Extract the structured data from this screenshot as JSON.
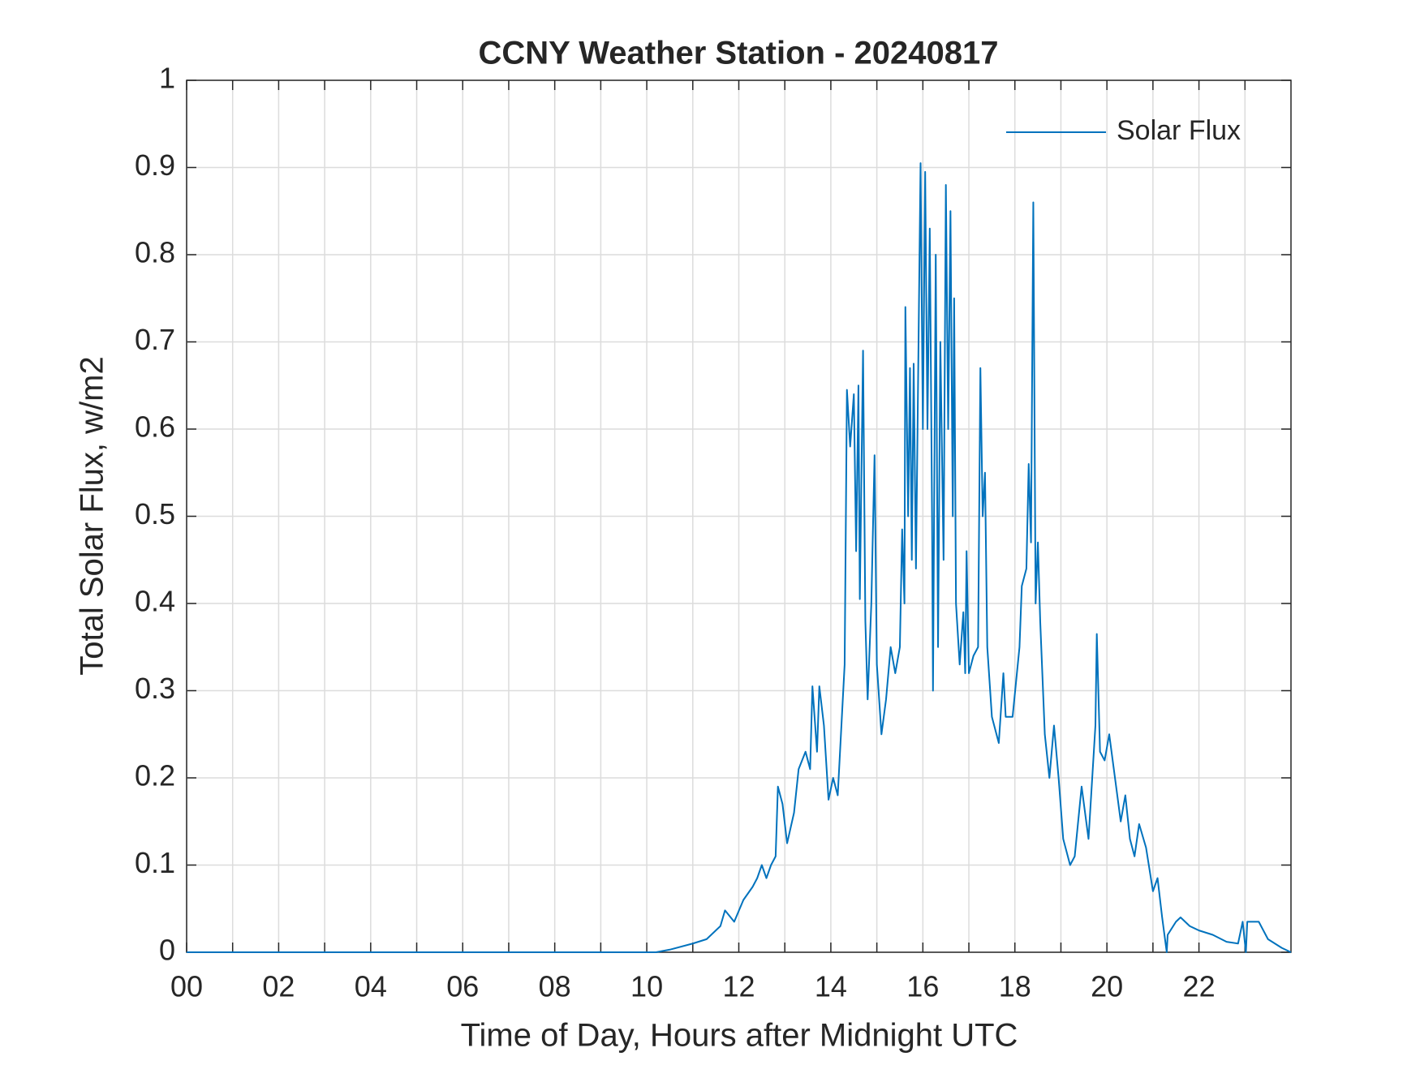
{
  "chart_data": {
    "type": "line",
    "title": "CCNY Weather Station - 20240817",
    "x_label": "Time of Day, Hours after Midnight UTC",
    "y_label": "Total Solar Flux, w/m2",
    "xlim": [
      0,
      24
    ],
    "xticks": [
      {
        "value": 0,
        "label": "00"
      },
      {
        "value": 2,
        "label": "02"
      },
      {
        "value": 4,
        "label": "04"
      },
      {
        "value": 6,
        "label": "06"
      },
      {
        "value": 8,
        "label": "08"
      },
      {
        "value": 10,
        "label": "10"
      },
      {
        "value": 12,
        "label": "12"
      },
      {
        "value": 14,
        "label": "14"
      },
      {
        "value": 16,
        "label": "16"
      },
      {
        "value": 18,
        "label": "18"
      },
      {
        "value": 20,
        "label": "20"
      },
      {
        "value": 22,
        "label": "22"
      }
    ],
    "x_minor_ticks": [
      1,
      3,
      5,
      7,
      9,
      11,
      13,
      15,
      17,
      19,
      21,
      23
    ],
    "ylim": [
      0,
      1
    ],
    "yticks": [
      0,
      0.1,
      0.2,
      0.3,
      0.4,
      0.5,
      0.6,
      0.7,
      0.8,
      0.9,
      1
    ],
    "grid": true,
    "legend": "upper right",
    "x": [
      0,
      10.2,
      10.5,
      11,
      11.3,
      11.6,
      11.7,
      11.9,
      12.1,
      12.3,
      12.4,
      12.5,
      12.6,
      12.7,
      12.8,
      12.85,
      12.95,
      13.05,
      13.2,
      13.3,
      13.45,
      13.55,
      13.6,
      13.7,
      13.75,
      13.85,
      13.95,
      14.05,
      14.15,
      14.3,
      14.35,
      14.42,
      14.5,
      14.55,
      14.6,
      14.63,
      14.7,
      14.75,
      14.8,
      14.88,
      14.95,
      15.0,
      15.1,
      15.2,
      15.3,
      15.4,
      15.5,
      15.55,
      15.6,
      15.62,
      15.68,
      15.72,
      15.76,
      15.8,
      15.85,
      15.95,
      16.0,
      16.05,
      16.1,
      16.15,
      16.2,
      16.22,
      16.28,
      16.33,
      16.38,
      16.45,
      16.5,
      16.55,
      16.6,
      16.65,
      16.68,
      16.72,
      16.8,
      16.88,
      16.92,
      16.95,
      17.0,
      17.1,
      17.2,
      17.25,
      17.3,
      17.35,
      17.4,
      17.5,
      17.65,
      17.75,
      17.8,
      17.95,
      18.1,
      18.15,
      18.25,
      18.3,
      18.35,
      18.4,
      18.45,
      18.5,
      18.55,
      18.65,
      18.75,
      18.85,
      18.95,
      19.05,
      19.2,
      19.3,
      19.45,
      19.6,
      19.75,
      19.78,
      19.85,
      19.95,
      20.05,
      20.2,
      20.3,
      20.4,
      20.5,
      20.6,
      20.7,
      20.85,
      21.0,
      21.1,
      21.2,
      21.3,
      21.32,
      21.5,
      21.6,
      21.8,
      22.0,
      22.3,
      22.6,
      22.85,
      22.95,
      23.02,
      23.05,
      23.3,
      23.5,
      23.8,
      24
    ],
    "series": [
      {
        "name": "Solar Flux",
        "color": "#0072bd",
        "values": [
          0,
          0,
          0.003,
          0.01,
          0.015,
          0.03,
          0.048,
          0.035,
          0.06,
          0.075,
          0.085,
          0.1,
          0.085,
          0.1,
          0.11,
          0.19,
          0.17,
          0.125,
          0.16,
          0.21,
          0.23,
          0.21,
          0.305,
          0.23,
          0.305,
          0.26,
          0.175,
          0.2,
          0.18,
          0.33,
          0.645,
          0.58,
          0.64,
          0.46,
          0.65,
          0.405,
          0.69,
          0.38,
          0.29,
          0.4,
          0.57,
          0.33,
          0.25,
          0.29,
          0.35,
          0.32,
          0.35,
          0.485,
          0.4,
          0.74,
          0.5,
          0.67,
          0.45,
          0.675,
          0.44,
          0.905,
          0.6,
          0.895,
          0.6,
          0.83,
          0.5,
          0.3,
          0.8,
          0.35,
          0.7,
          0.45,
          0.88,
          0.6,
          0.85,
          0.5,
          0.75,
          0.4,
          0.33,
          0.39,
          0.32,
          0.46,
          0.32,
          0.34,
          0.35,
          0.67,
          0.5,
          0.55,
          0.35,
          0.27,
          0.24,
          0.32,
          0.27,
          0.27,
          0.35,
          0.42,
          0.44,
          0.56,
          0.47,
          0.86,
          0.4,
          0.47,
          0.38,
          0.25,
          0.2,
          0.26,
          0.2,
          0.13,
          0.1,
          0.11,
          0.19,
          0.13,
          0.26,
          0.365,
          0.23,
          0.22,
          0.25,
          0.19,
          0.15,
          0.18,
          0.13,
          0.11,
          0.147,
          0.12,
          0.07,
          0.085,
          0.04,
          0,
          0.02,
          0.035,
          0.04,
          0.03,
          0.025,
          0.02,
          0.012,
          0.01,
          0.035,
          0,
          0.035,
          0.035,
          0.015,
          0.005,
          0
        ]
      }
    ]
  }
}
